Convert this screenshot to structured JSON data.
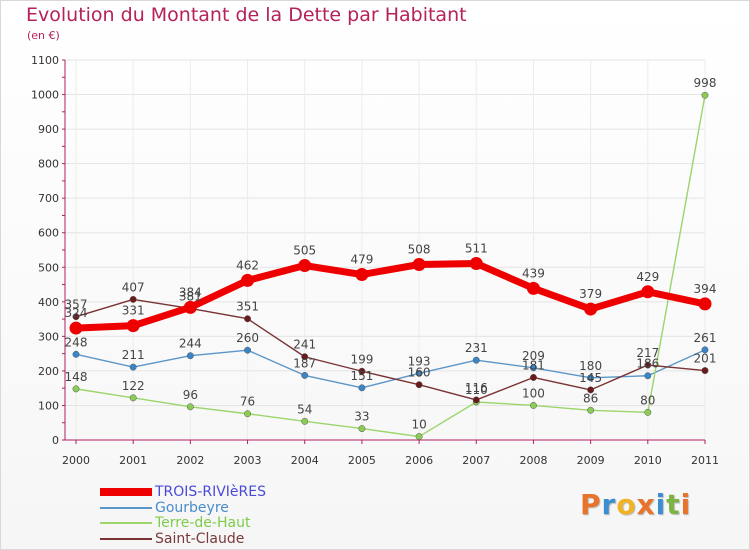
{
  "title": "Evolution du Montant de la Dette par Habitant",
  "subtitle": "(en €)",
  "logo": {
    "text": "Proxiti",
    "colors": [
      "#e8732b",
      "#3b8fd1",
      "#f0b323",
      "#e8732b",
      "#3b8fd1",
      "#7cb342",
      "#e8732b"
    ]
  },
  "chart_data": {
    "type": "line",
    "x": [
      "2000",
      "2001",
      "2002",
      "2003",
      "2004",
      "2005",
      "2006",
      "2007",
      "2008",
      "2009",
      "2010",
      "2011"
    ],
    "ylim": [
      0,
      1100
    ],
    "yticks": [
      0,
      100,
      200,
      300,
      400,
      500,
      600,
      700,
      800,
      900,
      1000,
      1100
    ],
    "grid": true,
    "legend": "bottom-left",
    "series": [
      {
        "name": "TROIS-RIVIèRES",
        "color": "#ee0000",
        "labelColor": "#4a4ad8",
        "width": 7,
        "values": [
          324,
          331,
          384,
          462,
          505,
          479,
          508,
          511,
          439,
          379,
          429,
          394
        ]
      },
      {
        "name": "Gourbeyre",
        "color": "#5b96c8",
        "labelColor": "#4a8cc8",
        "width": 1.4,
        "values": [
          248,
          211,
          244,
          260,
          187,
          151,
          193,
          231,
          209,
          180,
          186,
          261
        ]
      },
      {
        "name": "Terre-de-Haut",
        "color": "#9bd56b",
        "labelColor": "#7ccd4a",
        "width": 1.4,
        "values": [
          148,
          122,
          96,
          76,
          54,
          33,
          10,
          110,
          100,
          86,
          80,
          998
        ]
      },
      {
        "name": "Saint-Claude",
        "color": "#7a3333",
        "labelColor": "#7a3a3a",
        "width": 1.4,
        "values": [
          357,
          407,
          381,
          351,
          241,
          199,
          160,
          116,
          181,
          145,
          217,
          201
        ]
      }
    ]
  }
}
